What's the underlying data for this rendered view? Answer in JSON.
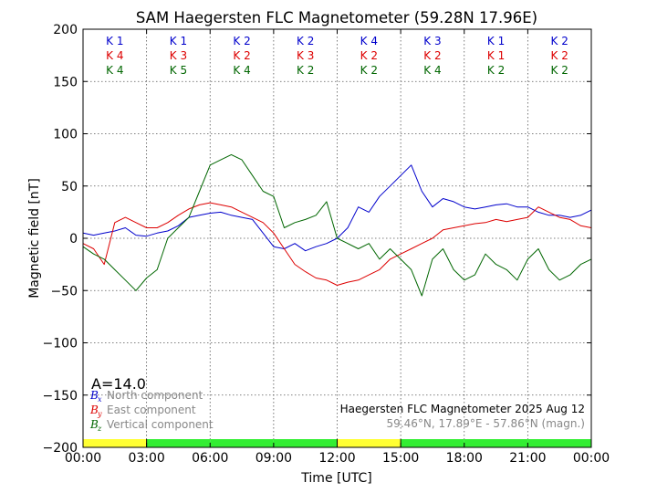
{
  "chart_data": {
    "type": "line",
    "title": "SAM Haegersten FLC Magnetometer (59.28N 17.96E)",
    "xlabel": "Time [UTC]",
    "ylabel": "Magnetic field [nT]",
    "ylim": [
      -200,
      200
    ],
    "xlim": [
      0,
      24
    ],
    "x_tick_labels": [
      "00:00",
      "03:00",
      "06:00",
      "09:00",
      "12:00",
      "15:00",
      "18:00",
      "21:00",
      "00:00"
    ],
    "y_ticks": [
      200,
      150,
      100,
      50,
      0,
      -50,
      -100,
      -150,
      -200
    ],
    "y_tick_labels": [
      "200",
      "150",
      "100",
      "50",
      "0",
      "−50",
      "−100",
      "−150",
      "−200"
    ],
    "grid": true,
    "a_index": "A=14.0",
    "k_indices": [
      {
        "bx": "K 1",
        "by": "K 4",
        "bz": "K 4"
      },
      {
        "bx": "K 1",
        "by": "K 3",
        "bz": "K 5"
      },
      {
        "bx": "K 2",
        "by": "K 2",
        "bz": "K 4"
      },
      {
        "bx": "K 2",
        "by": "K 3",
        "bz": "K 2"
      },
      {
        "bx": "K 4",
        "by": "K 2",
        "bz": "K 2"
      },
      {
        "bx": "K 3",
        "by": "K 2",
        "bz": "K 4"
      },
      {
        "bx": "K 1",
        "by": "K 1",
        "bz": "K 2"
      },
      {
        "bx": "K 2",
        "by": "K 2",
        "bz": "K 2"
      }
    ],
    "activity_bar": [
      "yellow",
      "green",
      "green",
      "green",
      "yellow",
      "green",
      "green",
      "green"
    ],
    "activity_colors": {
      "yellow": "#ffff33",
      "green": "#33ee33"
    },
    "legend": [
      {
        "symbol": "B",
        "subscript": "x",
        "label": "North component",
        "color": "#0000cc"
      },
      {
        "symbol": "B",
        "subscript": "y",
        "label": "East component",
        "color": "#dd0000"
      },
      {
        "symbol": "B",
        "subscript": "z",
        "label": "Vertical component",
        "color": "#006600"
      }
    ],
    "info_title": "Haegersten FLC Magnetometer 2025 Aug 12",
    "info_coords": "59.46°N, 17.89°E - 57.86°N (magn.)",
    "series": [
      {
        "name": "North component",
        "color": "#0000cc",
        "x": [
          0,
          0.5,
          1,
          1.5,
          2,
          2.5,
          3,
          3.5,
          4,
          4.5,
          5,
          5.5,
          6,
          6.5,
          7,
          7.5,
          8,
          8.5,
          9,
          9.5,
          10,
          10.5,
          11,
          11.5,
          12,
          12.5,
          13,
          13.5,
          14,
          14.5,
          15,
          15.5,
          16,
          16.5,
          17,
          17.5,
          18,
          18.5,
          19,
          19.5,
          20,
          20.5,
          21,
          21.5,
          22,
          22.5,
          23,
          23.5,
          24
        ],
        "y": [
          5,
          3,
          5,
          7,
          10,
          3,
          2,
          5,
          7,
          12,
          20,
          22,
          24,
          25,
          22,
          20,
          18,
          5,
          -8,
          -10,
          -5,
          -12,
          -8,
          -5,
          0,
          10,
          30,
          25,
          40,
          50,
          60,
          70,
          45,
          30,
          38,
          35,
          30,
          28,
          30,
          32,
          33,
          30,
          30,
          25,
          22,
          22,
          20,
          22,
          27
        ]
      },
      {
        "name": "East component",
        "color": "#dd0000",
        "x": [
          0,
          0.5,
          1,
          1.5,
          2,
          2.5,
          3,
          3.5,
          4,
          4.5,
          5,
          5.5,
          6,
          6.5,
          7,
          7.5,
          8,
          8.5,
          9,
          9.5,
          10,
          10.5,
          11,
          11.5,
          12,
          12.5,
          13,
          13.5,
          14,
          14.5,
          15,
          15.5,
          16,
          16.5,
          17,
          17.5,
          18,
          18.5,
          19,
          19.5,
          20,
          20.5,
          21,
          21.5,
          22,
          22.5,
          23,
          23.5,
          24
        ],
        "y": [
          -5,
          -10,
          -25,
          15,
          20,
          15,
          10,
          10,
          15,
          22,
          28,
          32,
          34,
          32,
          30,
          25,
          20,
          15,
          5,
          -10,
          -25,
          -32,
          -38,
          -40,
          -45,
          -42,
          -40,
          -35,
          -30,
          -20,
          -15,
          -10,
          -5,
          0,
          8,
          10,
          12,
          14,
          15,
          18,
          16,
          18,
          20,
          30,
          25,
          20,
          18,
          12,
          10
        ]
      },
      {
        "name": "Vertical component",
        "color": "#006600",
        "x": [
          0,
          0.5,
          1,
          1.5,
          2,
          2.5,
          3,
          3.5,
          4,
          4.5,
          5,
          5.5,
          6,
          6.5,
          7,
          7.5,
          8,
          8.5,
          9,
          9.5,
          10,
          10.5,
          11,
          11.5,
          12,
          12.5,
          13,
          13.5,
          14,
          14.5,
          15,
          15.5,
          16,
          16.5,
          17,
          17.5,
          18,
          18.5,
          19,
          19.5,
          20,
          20.5,
          21,
          21.5,
          22,
          22.5,
          23,
          23.5,
          24
        ],
        "y": [
          -8,
          -15,
          -20,
          -30,
          -40,
          -50,
          -38,
          -30,
          0,
          10,
          20,
          45,
          70,
          75,
          80,
          75,
          60,
          45,
          40,
          10,
          15,
          18,
          22,
          35,
          0,
          -5,
          -10,
          -5,
          -20,
          -10,
          -20,
          -30,
          -55,
          -20,
          -10,
          -30,
          -40,
          -35,
          -15,
          -25,
          -30,
          -40,
          -20,
          -10,
          -30,
          -40,
          -35,
          -25,
          -20
        ]
      }
    ]
  }
}
